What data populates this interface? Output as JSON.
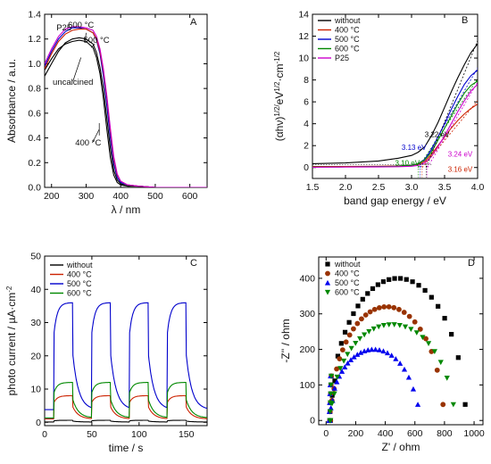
{
  "chart_data": [
    {
      "panel": "A",
      "type": "line",
      "xlabel": "λ / nm",
      "ylabel": "Absorbance / a.u.",
      "xlim": [
        180,
        650
      ],
      "ylim": [
        0.0,
        1.4
      ],
      "xticks": [
        "200",
        "300",
        "400",
        "500",
        "600"
      ],
      "yticks": [
        "0.0",
        "0.2",
        "0.4",
        "0.6",
        "0.8",
        "1.0",
        "1.2",
        "1.4"
      ],
      "annotations": [
        {
          "text": "P25",
          "x": 236,
          "y": 1.27
        },
        {
          "text": "600 °C",
          "x": 285,
          "y": 1.29
        },
        {
          "text": "500 °C",
          "x": 330,
          "y": 1.17
        },
        {
          "text": "uncalcined",
          "x": 262,
          "y": 0.83
        },
        {
          "text": "400 °C",
          "x": 306,
          "y": 0.34
        }
      ],
      "series": [
        {
          "color": "#000000",
          "x": [
            180,
            200,
            220,
            240,
            260,
            280,
            300,
            320,
            330,
            340,
            350,
            360,
            370,
            380,
            390,
            400,
            420,
            450,
            500,
            550,
            600,
            650
          ],
          "y": [
            0.95,
            1.04,
            1.12,
            1.16,
            1.18,
            1.19,
            1.18,
            1.13,
            1.05,
            0.92,
            0.72,
            0.47,
            0.24,
            0.1,
            0.04,
            0.02,
            0.01,
            0.01,
            0.0,
            0.0,
            0.0,
            0.0
          ]
        },
        {
          "color": "#000000",
          "x": [
            180,
            200,
            220,
            240,
            260,
            280,
            300,
            320,
            330,
            340,
            350,
            360,
            370,
            380,
            390,
            400,
            420,
            450,
            500,
            550,
            600,
            650
          ],
          "y": [
            0.9,
            1.0,
            1.1,
            1.17,
            1.2,
            1.21,
            1.2,
            1.16,
            1.09,
            0.97,
            0.8,
            0.56,
            0.32,
            0.14,
            0.06,
            0.03,
            0.01,
            0.01,
            0.0,
            0.0,
            0.0,
            0.0
          ]
        },
        {
          "color": "#0000cc",
          "x": [
            180,
            200,
            220,
            240,
            260,
            280,
            300,
            320,
            330,
            340,
            350,
            360,
            370,
            380,
            390,
            400,
            420,
            450,
            500,
            550,
            600,
            650
          ],
          "y": [
            0.98,
            1.1,
            1.2,
            1.26,
            1.29,
            1.29,
            1.28,
            1.25,
            1.19,
            1.08,
            0.9,
            0.66,
            0.4,
            0.19,
            0.08,
            0.04,
            0.02,
            0.01,
            0.0,
            0.0,
            0.0,
            0.0
          ]
        },
        {
          "color": "#cc2200",
          "x": [
            180,
            200,
            220,
            240,
            260,
            280,
            300,
            320,
            330,
            340,
            350,
            360,
            370,
            380,
            390,
            400,
            420,
            450,
            500,
            550,
            600,
            650
          ],
          "y": [
            0.96,
            1.08,
            1.18,
            1.24,
            1.27,
            1.28,
            1.28,
            1.25,
            1.2,
            1.1,
            0.94,
            0.72,
            0.46,
            0.23,
            0.1,
            0.05,
            0.02,
            0.01,
            0.0,
            0.0,
            0.0,
            0.0
          ]
        },
        {
          "color": "#cc00cc",
          "x": [
            180,
            200,
            220,
            240,
            260,
            280,
            300,
            320,
            330,
            340,
            350,
            360,
            370,
            380,
            390,
            400,
            420,
            450,
            500,
            550,
            600,
            650
          ],
          "y": [
            1.0,
            1.12,
            1.22,
            1.28,
            1.3,
            1.3,
            1.29,
            1.27,
            1.22,
            1.12,
            0.96,
            0.74,
            0.48,
            0.25,
            0.11,
            0.05,
            0.02,
            0.01,
            0.0,
            0.0,
            0.0,
            0.0
          ]
        }
      ]
    },
    {
      "panel": "B",
      "type": "line",
      "xlabel": "band gap energy / eV",
      "ylabel": "(αhν)^1/2/eV^1/2·cm^-1/2",
      "xlim": [
        1.5,
        4.0
      ],
      "ylim": [
        -1,
        14
      ],
      "xticks": [
        "1.5",
        "2.0",
        "2.5",
        "3.0",
        "3.5",
        "4.0"
      ],
      "yticks": [
        "0",
        "2",
        "4",
        "6",
        "8",
        "10",
        "12",
        "14"
      ],
      "legend": {
        "position": "top-left",
        "entries": [
          {
            "label": "without",
            "color": "#000000"
          },
          {
            "label": "400 °C",
            "color": "#cc2200"
          },
          {
            "label": "500 °C",
            "color": "#0000cc"
          },
          {
            "label": "600 °C",
            "color": "#008800"
          },
          {
            "label": "P25",
            "color": "#cc00cc"
          }
        ]
      },
      "annotations": [
        {
          "text": "3.22 eV",
          "x": 3.2,
          "y": 2.8,
          "color": "#000000"
        },
        {
          "text": "3.13 eV",
          "x": 2.85,
          "y": 1.6,
          "color": "#0000cc"
        },
        {
          "text": "3.10 eV",
          "x": 2.75,
          "y": 0.2,
          "color": "#008800"
        },
        {
          "text": "3.24 eV",
          "x": 3.55,
          "y": 1.0,
          "color": "#cc00cc"
        },
        {
          "text": "3.16 eV",
          "x": 3.55,
          "y": -0.4,
          "color": "#cc2200"
        }
      ],
      "series": [
        {
          "name": "without",
          "color": "#000000",
          "x": [
            1.5,
            2.0,
            2.5,
            2.8,
            3.0,
            3.1,
            3.2,
            3.3,
            3.4,
            3.5,
            3.6,
            3.7,
            3.8,
            3.9,
            4.0
          ],
          "y": [
            0.35,
            0.42,
            0.6,
            0.85,
            1.1,
            1.4,
            1.9,
            2.9,
            4.1,
            5.5,
            6.9,
            8.2,
            9.4,
            10.5,
            11.3
          ]
        },
        {
          "name": "400 °C",
          "color": "#cc2200",
          "x": [
            1.5,
            2.0,
            2.5,
            2.8,
            3.0,
            3.1,
            3.2,
            3.3,
            3.4,
            3.5,
            3.6,
            3.7,
            3.8,
            3.9,
            4.0
          ],
          "y": [
            0.1,
            0.1,
            0.12,
            0.15,
            0.2,
            0.3,
            0.55,
            1.2,
            2.0,
            2.8,
            3.6,
            4.3,
            4.9,
            5.4,
            5.8
          ]
        },
        {
          "name": "500 °C",
          "color": "#0000cc",
          "x": [
            1.5,
            2.0,
            2.5,
            2.8,
            3.0,
            3.1,
            3.2,
            3.3,
            3.4,
            3.5,
            3.6,
            3.7,
            3.8,
            3.9,
            4.0
          ],
          "y": [
            0.05,
            0.06,
            0.08,
            0.12,
            0.2,
            0.35,
            0.75,
            1.6,
            2.8,
            4.0,
            5.3,
            6.5,
            7.6,
            8.4,
            8.9
          ]
        },
        {
          "name": "600 °C",
          "color": "#008800",
          "x": [
            1.5,
            2.0,
            2.5,
            2.8,
            3.0,
            3.1,
            3.2,
            3.3,
            3.4,
            3.5,
            3.6,
            3.7,
            3.8,
            3.9,
            4.0
          ],
          "y": [
            0.05,
            0.06,
            0.08,
            0.12,
            0.2,
            0.35,
            0.7,
            1.4,
            2.5,
            3.6,
            4.7,
            5.8,
            6.8,
            7.5,
            7.9
          ]
        },
        {
          "name": "P25",
          "color": "#cc00cc",
          "x": [
            1.5,
            2.0,
            2.5,
            2.8,
            3.0,
            3.1,
            3.2,
            3.3,
            3.4,
            3.5,
            3.6,
            3.7,
            3.8,
            3.9,
            4.0
          ],
          "y": [
            0.03,
            0.04,
            0.05,
            0.08,
            0.12,
            0.2,
            0.4,
            1.0,
            1.9,
            2.9,
            4.0,
            5.1,
            6.1,
            7.0,
            7.6
          ]
        }
      ]
    },
    {
      "panel": "C",
      "type": "line",
      "xlabel": "time / s",
      "ylabel": "photo current / µA·cm^-2",
      "xlim": [
        0,
        172
      ],
      "ylim": [
        -1,
        50
      ],
      "xticks": [
        "0",
        "50",
        "100",
        "150"
      ],
      "yticks": [
        "0",
        "10",
        "20",
        "30",
        "40",
        "50"
      ],
      "light_on_intervals": [
        [
          10,
          30
        ],
        [
          50,
          70
        ],
        [
          90,
          110
        ],
        [
          130,
          150
        ]
      ],
      "legend": {
        "position": "top-left",
        "entries": [
          {
            "label": "without",
            "color": "#000000"
          },
          {
            "label": "400 °C",
            "color": "#cc2200"
          },
          {
            "label": "500 °C",
            "color": "#0000cc"
          },
          {
            "label": "600 °C",
            "color": "#008800"
          }
        ]
      },
      "series": [
        {
          "name": "without",
          "color": "#000000",
          "baseline": 0.1,
          "peak": 0.6
        },
        {
          "name": "400 °C",
          "color": "#cc2200",
          "baseline": 1.0,
          "peak": 8.0
        },
        {
          "name": "500 °C",
          "color": "#0000cc",
          "baseline": 3.8,
          "peak": 36.0
        },
        {
          "name": "600 °C",
          "color": "#008800",
          "baseline": 1.3,
          "peak": 12.0
        }
      ]
    },
    {
      "panel": "D",
      "type": "scatter",
      "xlabel": "Z' / ohm",
      "ylabel": "-Z'' / ohm",
      "xlim": [
        -50,
        1060
      ],
      "ylim": [
        -12,
        460
      ],
      "xticks": [
        "0",
        "200",
        "400",
        "600",
        "800",
        "1000"
      ],
      "yticks": [
        "0",
        "100",
        "200",
        "300",
        "400"
      ],
      "legend": {
        "position": "top-left",
        "entries": [
          {
            "label": "without",
            "color": "#000000",
            "marker": "square"
          },
          {
            "label": "400 °C",
            "color": "#993300",
            "marker": "circle"
          },
          {
            "label": "500 °C",
            "color": "#0000ee",
            "marker": "triangle-up"
          },
          {
            "label": "600 °C",
            "color": "#008800",
            "marker": "triangle-down"
          }
        ]
      },
      "series": [
        {
          "name": "without",
          "center": 490,
          "radius": 420,
          "ymax": 400,
          "xmin": 30,
          "xmax": 940
        },
        {
          "name": "400 °C",
          "center": 420,
          "radius": 360,
          "ymax": 320,
          "xmin": 30,
          "xmax": 790
        },
        {
          "name": "500 °C",
          "center": 270,
          "radius": 230,
          "ymax": 200,
          "xmin": 25,
          "xmax": 620
        },
        {
          "name": "600 °C",
          "center": 430,
          "radius": 380,
          "ymax": 270,
          "xmin": 30,
          "xmax": 860
        }
      ]
    }
  ]
}
